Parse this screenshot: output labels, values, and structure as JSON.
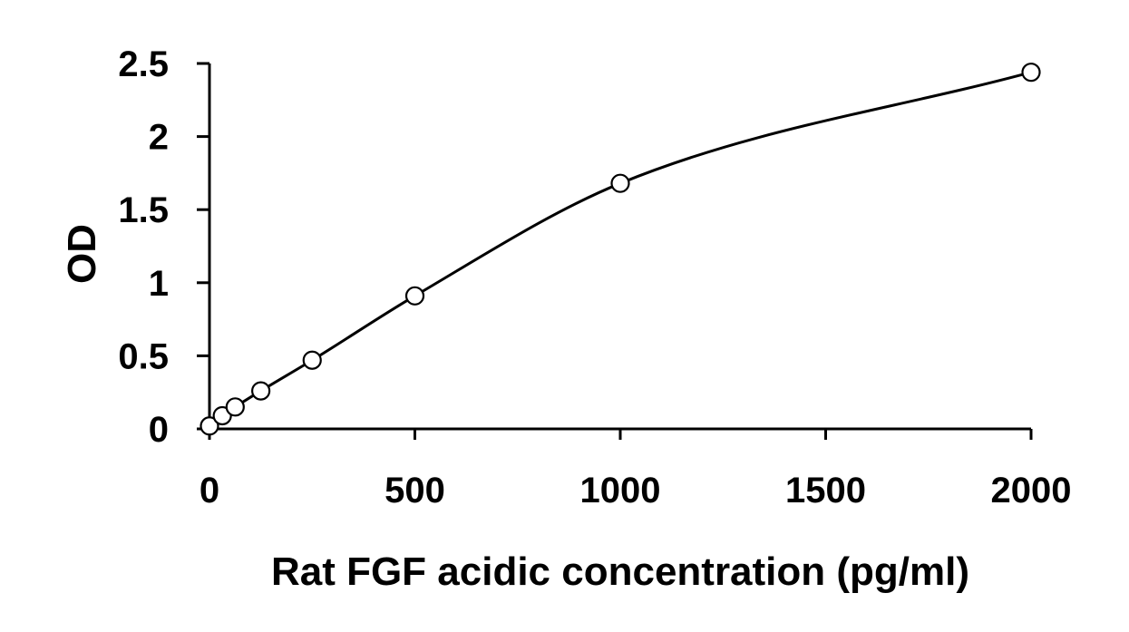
{
  "chart_data": {
    "type": "scatter",
    "title": "",
    "xlabel": "Rat FGF acidic concentration (pg/ml)",
    "ylabel": "OD",
    "xlim": [
      0,
      2000
    ],
    "ylim": [
      0,
      2.5
    ],
    "x_ticks": [
      "0",
      "500",
      "1000",
      "1500",
      "2000"
    ],
    "y_ticks": [
      "0",
      "0.5",
      "1",
      "1.5",
      "2",
      "2.5"
    ],
    "grid": false,
    "legend": "none",
    "series": [
      {
        "marker": "open-circle",
        "points": [
          {
            "x": 0,
            "y": 0.02
          },
          {
            "x": 31.25,
            "y": 0.09
          },
          {
            "x": 62.5,
            "y": 0.15
          },
          {
            "x": 125,
            "y": 0.26
          },
          {
            "x": 250,
            "y": 0.47
          },
          {
            "x": 500,
            "y": 0.91
          },
          {
            "x": 1000,
            "y": 1.68
          },
          {
            "x": 2000,
            "y": 2.44
          }
        ]
      }
    ],
    "fit_curve": "smooth",
    "colors": {
      "axis": "#000000",
      "line": "#000000",
      "marker_fill": "#ffffff"
    }
  }
}
